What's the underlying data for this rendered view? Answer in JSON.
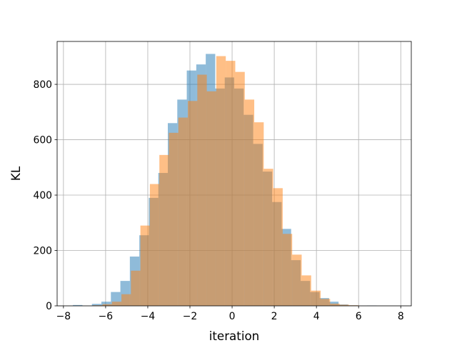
{
  "chart_data": {
    "type": "bar",
    "title": "",
    "xlabel": "iteration",
    "ylabel": "KL",
    "xlim": [
      -8.3,
      8.5
    ],
    "ylim": [
      0,
      955
    ],
    "grid": true,
    "legend": "none",
    "x_ticks": [
      -8,
      -6,
      -4,
      -2,
      0,
      2,
      4,
      6,
      8
    ],
    "x_tick_labels": [
      "−8",
      "−6",
      "−4",
      "−2",
      "0",
      "2",
      "4",
      "6",
      "8"
    ],
    "y_ticks": [
      0,
      200,
      400,
      600,
      800
    ],
    "y_tick_labels": [
      "0",
      "200",
      "400",
      "600",
      "800"
    ],
    "series": [
      {
        "color": "#1f77b4",
        "opacity": 0.5,
        "bin_start": -7.55,
        "bin_width": 0.45,
        "values": [
          3,
          0,
          7,
          15,
          50,
          90,
          178,
          255,
          390,
          480,
          660,
          745,
          850,
          872,
          910,
          785,
          825,
          785,
          690,
          585,
          485,
          375,
          278,
          165,
          90,
          50,
          28,
          15,
          5,
          2,
          0,
          1
        ]
      },
      {
        "color": "#ff7f0e",
        "opacity": 0.5,
        "bin_start": -6.6,
        "bin_width": 0.45,
        "values": [
          2,
          6,
          15,
          42,
          127,
          290,
          440,
          545,
          625,
          680,
          740,
          835,
          775,
          902,
          885,
          845,
          745,
          663,
          495,
          425,
          260,
          185,
          110,
          55,
          25,
          8,
          4,
          2
        ]
      }
    ]
  }
}
